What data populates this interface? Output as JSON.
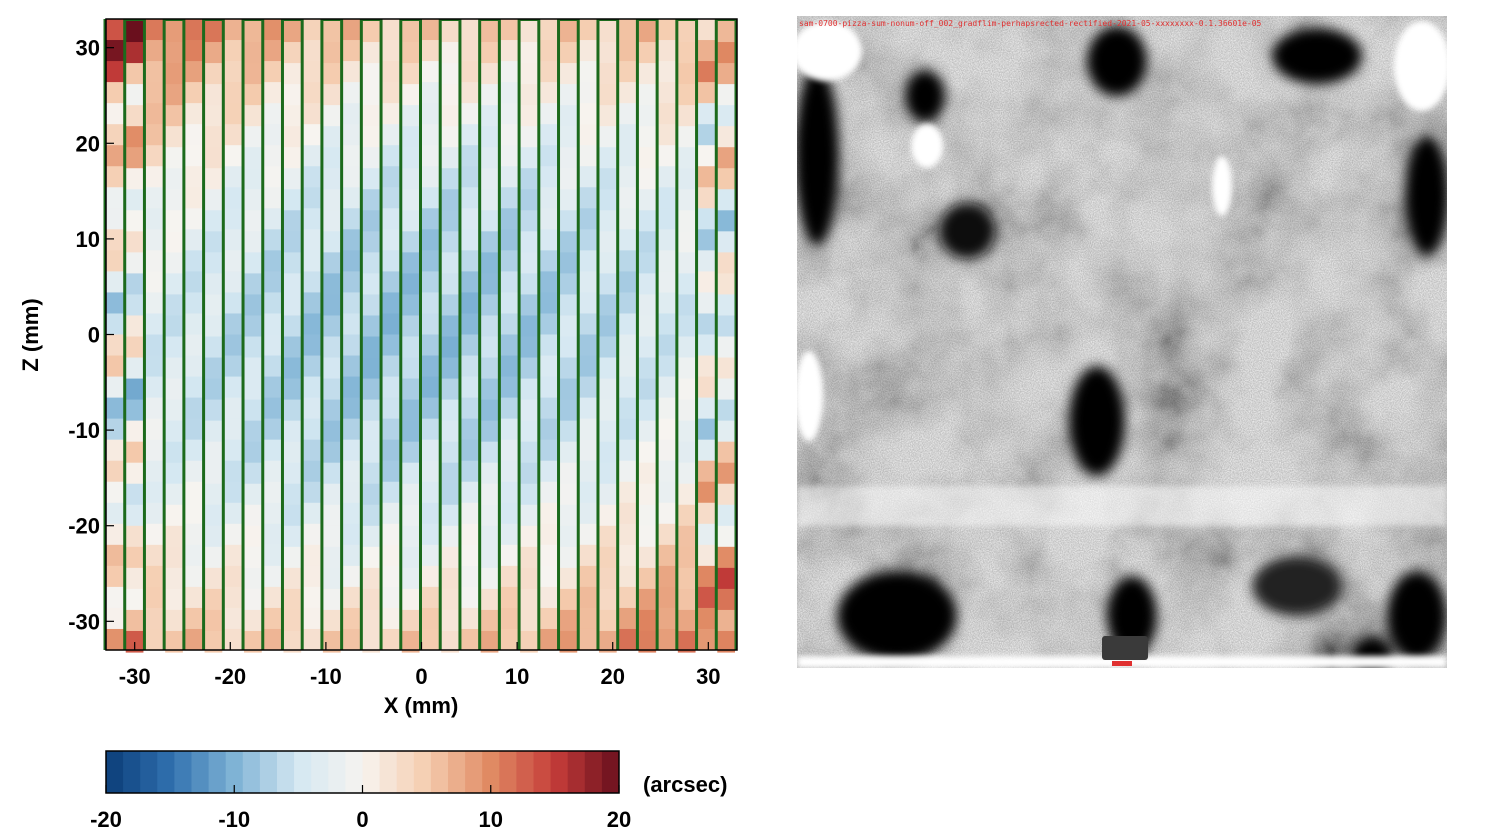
{
  "chart_data": [
    {
      "type": "heatmap",
      "xlabel": "X (mm)",
      "ylabel": "Z (mm)",
      "xlim": [
        -33,
        33
      ],
      "ylim": [
        33,
        -33
      ],
      "xticks": [
        -30,
        -20,
        -10,
        0,
        10,
        20,
        30
      ],
      "yticks": [
        -30,
        -20,
        -10,
        0,
        10,
        20,
        30
      ],
      "slit_columns": 32,
      "colorbar": {
        "label": "(arcsec)",
        "range": [
          -20,
          20
        ],
        "ticks": [
          -20,
          -10,
          0,
          10,
          20
        ],
        "colormap": [
          "#0b3d78",
          "#2f6fae",
          "#7fb3d5",
          "#d5e8f2",
          "#f7f4f0",
          "#f5cdb0",
          "#e08a63",
          "#c43c39",
          "#690f1d"
        ]
      },
      "colors": {
        "slit_divider": "#1c6a1c",
        "frame": "#000000"
      }
    },
    {
      "type": "heatmap",
      "overlay_header": "sam-0700-pizza-sum-nonum-off_002_gradflim-perhapsrected-rectified-2021-05-xxxxxxxx-0.1.36601e-05",
      "colormap": [
        "#000000",
        "#ffffff"
      ]
    }
  ]
}
